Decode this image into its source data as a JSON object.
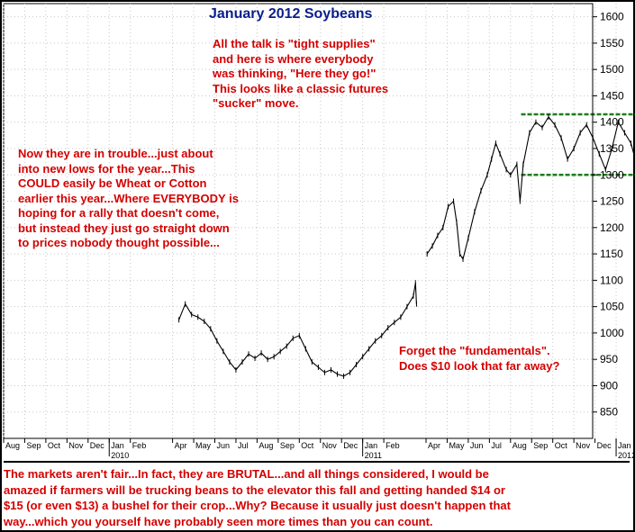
{
  "title": "January 2012 Soybeans",
  "annotations": {
    "top": "All the talk is \"tight supplies\"\nand here is where everybody\nwas thinking, \"Here they go!\"\nThis looks like a classic futures\n\"sucker\" move.",
    "left": "Now they are in trouble...just about\ninto new lows for the year...This\nCOULD easily be Wheat or Cotton\nearlier this year...Where EVERYBODY is\nhoping for a rally that doesn't come,\nbut instead they just go straight down\nto prices nobody thought possible...",
    "right": "Forget the \"fundamentals\".\nDoes $10 look that far away?"
  },
  "footer": "The markets aren't fair...In fact, they are BRUTAL...and all things considered, I would be\namazed if farmers will be trucking beans to the elevator this fall and getting handed $14 or\n$15 (or even $13) a bushel for their crop...Why? Because it usually just doesn't happen that\nway...which you yourself have probably seen more times than you can count.",
  "colors": {
    "price": "#000000",
    "range_lines": "#1e7d1e",
    "arrow": "#d40000",
    "annotation": "#d40000",
    "title": "#0a1e8c"
  },
  "chart_data": {
    "type": "line",
    "title": "January 2012 Soybeans",
    "y_axis": {
      "position": "right",
      "ylim": [
        800,
        1625
      ],
      "ticks": [
        850,
        900,
        950,
        1000,
        1050,
        1100,
        1150,
        1200,
        1250,
        1300,
        1350,
        1400,
        1450,
        1500,
        1550,
        1600
      ]
    },
    "x_axis": {
      "months": [
        "Aug",
        "Sep",
        "Oct",
        "Nov",
        "Dec",
        "Jan",
        "Feb",
        "Apr",
        "May",
        "Jun",
        "Jul",
        "Aug",
        "Sep",
        "Oct",
        "Nov",
        "Dec",
        "Jan",
        "Feb",
        "Apr",
        "May",
        "Jun",
        "Jul",
        "Aug",
        "Sep",
        "Oct",
        "Nov",
        "Dec",
        "Jan"
      ],
      "month_index": [
        0,
        1,
        2,
        3,
        4,
        5,
        6,
        8,
        9,
        10,
        11,
        12,
        13,
        14,
        15,
        16,
        17,
        18,
        20,
        21,
        22,
        23,
        24,
        25,
        26,
        27,
        28,
        29
      ],
      "years": [
        "2010",
        "2011",
        "2012"
      ],
      "year_index": [
        5,
        17,
        29
      ]
    },
    "grid": true,
    "series": [
      {
        "points": [
          [
            8.3,
            1025
          ],
          [
            8.6,
            1055
          ],
          [
            8.9,
            1035
          ],
          [
            9.2,
            1030
          ],
          [
            9.5,
            1022
          ],
          [
            9.8,
            1008
          ],
          [
            10.1,
            985
          ],
          [
            10.4,
            965
          ],
          [
            10.7,
            945
          ],
          [
            11.0,
            930
          ],
          [
            11.3,
            945
          ],
          [
            11.6,
            960
          ],
          [
            11.9,
            952
          ],
          [
            12.2,
            962
          ],
          [
            12.5,
            950
          ],
          [
            12.8,
            955
          ],
          [
            13.1,
            965
          ],
          [
            13.4,
            975
          ],
          [
            13.7,
            990
          ],
          [
            14.0,
            995
          ],
          [
            14.3,
            970
          ],
          [
            14.6,
            945
          ],
          [
            14.9,
            935
          ],
          [
            15.2,
            925
          ],
          [
            15.5,
            930
          ],
          [
            15.8,
            922
          ],
          [
            16.1,
            918
          ],
          [
            16.4,
            925
          ],
          [
            16.7,
            940
          ],
          [
            17.0,
            955
          ],
          [
            17.3,
            970
          ],
          [
            17.6,
            985
          ],
          [
            17.9,
            995
          ],
          [
            18.2,
            1010
          ],
          [
            18.5,
            1020
          ],
          [
            18.8,
            1030
          ],
          [
            19.1,
            1050
          ],
          [
            19.4,
            1070
          ],
          [
            19.5,
            1095
          ],
          [
            19.55,
            1055
          ],
          [
            20.05,
            1150
          ],
          [
            20.3,
            1165
          ],
          [
            20.55,
            1185
          ],
          [
            20.8,
            1200
          ],
          [
            21.05,
            1240
          ],
          [
            21.3,
            1250
          ],
          [
            21.45,
            1210
          ],
          [
            21.6,
            1150
          ],
          [
            21.75,
            1140
          ],
          [
            22.0,
            1180
          ],
          [
            22.3,
            1230
          ],
          [
            22.6,
            1270
          ],
          [
            22.9,
            1300
          ],
          [
            23.1,
            1330
          ],
          [
            23.3,
            1360
          ],
          [
            23.5,
            1340
          ],
          [
            23.8,
            1310
          ],
          [
            24.0,
            1300
          ],
          [
            24.3,
            1320
          ],
          [
            24.45,
            1250
          ],
          [
            24.6,
            1320
          ],
          [
            24.9,
            1380
          ],
          [
            25.2,
            1400
          ],
          [
            25.5,
            1390
          ],
          [
            25.8,
            1410
          ],
          [
            26.1,
            1395
          ],
          [
            26.4,
            1370
          ],
          [
            26.7,
            1330
          ],
          [
            27.0,
            1350
          ],
          [
            27.3,
            1380
          ],
          [
            27.6,
            1395
          ],
          [
            27.9,
            1370
          ],
          [
            28.2,
            1340
          ],
          [
            28.5,
            1310
          ],
          [
            28.8,
            1350
          ],
          [
            29.1,
            1400
          ],
          [
            29.4,
            1380
          ],
          [
            29.7,
            1360
          ],
          [
            29.9,
            1330
          ],
          [
            30.2,
            1350
          ],
          [
            30.5,
            1390
          ],
          [
            30.8,
            1410
          ],
          [
            31.1,
            1390
          ],
          [
            31.4,
            1380
          ],
          [
            31.6,
            1350
          ],
          [
            31.8,
            1310
          ],
          [
            32.1,
            1340
          ],
          [
            32.4,
            1380
          ],
          [
            32.7,
            1400
          ],
          [
            33.0,
            1410
          ],
          [
            33.3,
            1390
          ],
          [
            33.5,
            1360
          ],
          [
            33.7,
            1310
          ],
          [
            33.9,
            1300
          ],
          [
            34.1,
            1340
          ],
          [
            34.3,
            1390
          ],
          [
            34.5,
            1420
          ],
          [
            34.7,
            1450
          ],
          [
            34.9,
            1470
          ],
          [
            35.1,
            1465
          ],
          [
            35.3,
            1430
          ],
          [
            35.5,
            1420
          ],
          [
            35.7,
            1400
          ],
          [
            35.9,
            1360
          ],
          [
            36.1,
            1320
          ],
          [
            36.3,
            1265
          ]
        ]
      }
    ],
    "range_lines": [
      {
        "y": 1415,
        "x_start": 24.5,
        "x_end": 34.5
      },
      {
        "y": 1300,
        "x_start": 24.5,
        "x_end": 34.5
      }
    ],
    "arrow": {
      "from": [
        29.9,
        1510
      ],
      "to": [
        34.5,
        1480
      ]
    }
  }
}
